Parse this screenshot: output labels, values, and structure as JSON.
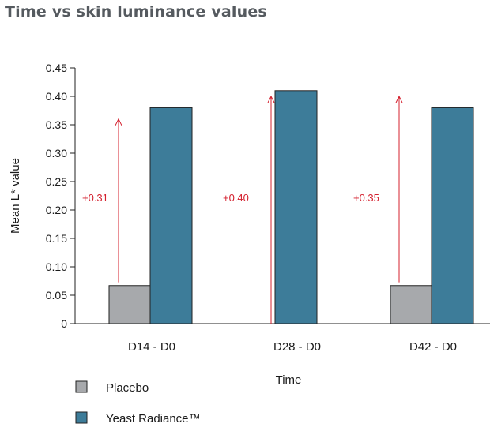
{
  "chart_data": {
    "type": "bar",
    "title": "Time vs skin luminance values",
    "xlabel": "Time",
    "ylabel": "Mean L* value",
    "categories": [
      "D14 - D0",
      "D28 - D0",
      "D42 - D0"
    ],
    "series": [
      {
        "name": "Placebo",
        "color": "#a7a9ac",
        "values": [
          0.067,
          0.0,
          0.067
        ]
      },
      {
        "name": "Yeast Radiance™",
        "color": "#3d7c99",
        "values": [
          0.38,
          0.41,
          0.38
        ]
      }
    ],
    "annotations": [
      {
        "category": "D14 - D0",
        "label": "+0.31",
        "from": 0.07,
        "to": 0.36
      },
      {
        "category": "D28 - D0",
        "label": "+0.40",
        "from": 0.0,
        "to": 0.4
      },
      {
        "category": "D42 - D0",
        "label": "+0.35",
        "from": 0.07,
        "to": 0.4
      }
    ],
    "ylim": [
      0,
      0.45
    ],
    "yticks": [
      "0",
      "0.05",
      "0.10",
      "0.15",
      "0.20",
      "0.25",
      "0.30",
      "0.35",
      "0.40",
      "0.45"
    ],
    "ytick_values": [
      0,
      0.05,
      0.1,
      0.15,
      0.2,
      0.25,
      0.3,
      0.35,
      0.4,
      0.45
    ],
    "grid": false,
    "legend_position": "bottom-left",
    "annotation_color": "#d4202e"
  }
}
